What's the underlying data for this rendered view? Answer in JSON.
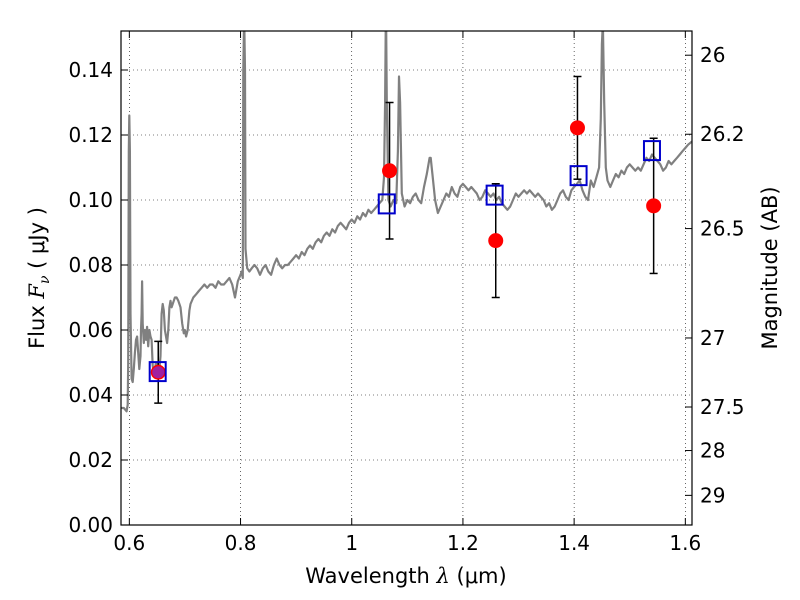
{
  "chart_data": {
    "type": "scatter",
    "xlabel": "Wavelength λ (μm)",
    "ylabel": "Flux  F_ν  ( μJy )",
    "y2label": "Magnitude (AB)",
    "xlim": [
      0.585,
      1.612
    ],
    "ylim": [
      0.0,
      0.152
    ],
    "grid": true,
    "grid_style": "dotted",
    "xticks": [
      0.6,
      0.8,
      1.0,
      1.2,
      1.4,
      1.6
    ],
    "xtick_labels": [
      "0.6",
      "0.8",
      "1",
      "1.2",
      "1.4",
      "1.6"
    ],
    "yticks": [
      0.0,
      0.02,
      0.04,
      0.06,
      0.08,
      0.1,
      0.12,
      0.14
    ],
    "ytick_labels": [
      "0.00",
      "0.02",
      "0.04",
      "0.06",
      "0.08",
      "0.10",
      "0.12",
      "0.14"
    ],
    "y2ticks": [
      26,
      26.2,
      26.5,
      27,
      27.5,
      28,
      29
    ],
    "y2tick_labels": [
      "26",
      "26.2",
      "26.5",
      "27",
      "27.5",
      "28",
      "29"
    ],
    "series": [
      {
        "type": "line",
        "color": "#808080",
        "points": [
          [
            0.585,
            0.036
          ],
          [
            0.59,
            0.036
          ],
          [
            0.595,
            0.035
          ],
          [
            0.597,
            0.037
          ],
          [
            0.598,
            0.05
          ],
          [
            0.599,
            0.115
          ],
          [
            0.6,
            0.126
          ],
          [
            0.601,
            0.115
          ],
          [
            0.602,
            0.065
          ],
          [
            0.604,
            0.045
          ],
          [
            0.606,
            0.044
          ],
          [
            0.608,
            0.048
          ],
          [
            0.61,
            0.053
          ],
          [
            0.612,
            0.057
          ],
          [
            0.614,
            0.058
          ],
          [
            0.616,
            0.053
          ],
          [
            0.618,
            0.048
          ],
          [
            0.62,
            0.052
          ],
          [
            0.621,
            0.06
          ],
          [
            0.622,
            0.065
          ],
          [
            0.623,
            0.075
          ],
          [
            0.624,
            0.062
          ],
          [
            0.626,
            0.056
          ],
          [
            0.628,
            0.06
          ],
          [
            0.63,
            0.057
          ],
          [
            0.632,
            0.061
          ],
          [
            0.634,
            0.055
          ],
          [
            0.636,
            0.06
          ],
          [
            0.638,
            0.058
          ],
          [
            0.64,
            0.057
          ],
          [
            0.642,
            0.049
          ],
          [
            0.644,
            0.047
          ],
          [
            0.646,
            0.048
          ],
          [
            0.648,
            0.05
          ],
          [
            0.65,
            0.049
          ],
          [
            0.652,
            0.05
          ],
          [
            0.654,
            0.048
          ],
          [
            0.656,
            0.052
          ],
          [
            0.658,
            0.065
          ],
          [
            0.66,
            0.068
          ],
          [
            0.662,
            0.066
          ],
          [
            0.664,
            0.06
          ],
          [
            0.666,
            0.058
          ],
          [
            0.668,
            0.056
          ],
          [
            0.67,
            0.06
          ],
          [
            0.672,
            0.067
          ],
          [
            0.674,
            0.069
          ],
          [
            0.676,
            0.067
          ],
          [
            0.678,
            0.068
          ],
          [
            0.68,
            0.069
          ],
          [
            0.682,
            0.07
          ],
          [
            0.685,
            0.07
          ],
          [
            0.688,
            0.069
          ],
          [
            0.69,
            0.068
          ],
          [
            0.692,
            0.067
          ],
          [
            0.695,
            0.062
          ],
          [
            0.698,
            0.059
          ],
          [
            0.7,
            0.06
          ],
          [
            0.702,
            0.058
          ],
          [
            0.705,
            0.06
          ],
          [
            0.708,
            0.066
          ],
          [
            0.71,
            0.068
          ],
          [
            0.715,
            0.07
          ],
          [
            0.72,
            0.071
          ],
          [
            0.725,
            0.072
          ],
          [
            0.73,
            0.073
          ],
          [
            0.735,
            0.074
          ],
          [
            0.74,
            0.073
          ],
          [
            0.745,
            0.074
          ],
          [
            0.75,
            0.074
          ],
          [
            0.755,
            0.073
          ],
          [
            0.76,
            0.075
          ],
          [
            0.765,
            0.074
          ],
          [
            0.77,
            0.074
          ],
          [
            0.775,
            0.075
          ],
          [
            0.78,
            0.076
          ],
          [
            0.785,
            0.074
          ],
          [
            0.79,
            0.07
          ],
          [
            0.795,
            0.075
          ],
          [
            0.8,
            0.077
          ],
          [
            0.802,
            0.078
          ],
          [
            0.804,
            0.076
          ],
          [
            0.805,
            0.14
          ],
          [
            0.806,
            0.152
          ],
          [
            0.807,
            0.152
          ],
          [
            0.808,
            0.14
          ],
          [
            0.809,
            0.085
          ],
          [
            0.812,
            0.079
          ],
          [
            0.816,
            0.078
          ],
          [
            0.82,
            0.079
          ],
          [
            0.825,
            0.08
          ],
          [
            0.83,
            0.079
          ],
          [
            0.835,
            0.077
          ],
          [
            0.84,
            0.079
          ],
          [
            0.845,
            0.08
          ],
          [
            0.85,
            0.078
          ],
          [
            0.855,
            0.077
          ],
          [
            0.86,
            0.08
          ],
          [
            0.865,
            0.082
          ],
          [
            0.87,
            0.08
          ],
          [
            0.875,
            0.079
          ],
          [
            0.88,
            0.08
          ],
          [
            0.885,
            0.08
          ],
          [
            0.89,
            0.081
          ],
          [
            0.895,
            0.082
          ],
          [
            0.9,
            0.083
          ],
          [
            0.905,
            0.082
          ],
          [
            0.91,
            0.084
          ],
          [
            0.915,
            0.083
          ],
          [
            0.92,
            0.085
          ],
          [
            0.925,
            0.086
          ],
          [
            0.93,
            0.085
          ],
          [
            0.935,
            0.087
          ],
          [
            0.94,
            0.088
          ],
          [
            0.945,
            0.087
          ],
          [
            0.95,
            0.089
          ],
          [
            0.955,
            0.09
          ],
          [
            0.96,
            0.089
          ],
          [
            0.965,
            0.091
          ],
          [
            0.97,
            0.09
          ],
          [
            0.975,
            0.092
          ],
          [
            0.98,
            0.093
          ],
          [
            0.985,
            0.092
          ],
          [
            0.99,
            0.091
          ],
          [
            0.995,
            0.093
          ],
          [
            1.0,
            0.094
          ],
          [
            1.005,
            0.093
          ],
          [
            1.01,
            0.095
          ],
          [
            1.015,
            0.094
          ],
          [
            1.02,
            0.096
          ],
          [
            1.025,
            0.095
          ],
          [
            1.03,
            0.097
          ],
          [
            1.035,
            0.096
          ],
          [
            1.04,
            0.097
          ],
          [
            1.045,
            0.098
          ],
          [
            1.05,
            0.099
          ],
          [
            1.055,
            0.1
          ],
          [
            1.058,
            0.107
          ],
          [
            1.06,
            0.13
          ],
          [
            1.061,
            0.152
          ],
          [
            1.062,
            0.152
          ],
          [
            1.063,
            0.13
          ],
          [
            1.066,
            0.1
          ],
          [
            1.07,
            0.098
          ],
          [
            1.075,
            0.1
          ],
          [
            1.08,
            0.099
          ],
          [
            1.083,
            0.115
          ],
          [
            1.085,
            0.138
          ],
          [
            1.087,
            0.13
          ],
          [
            1.09,
            0.102
          ],
          [
            1.095,
            0.098
          ],
          [
            1.1,
            0.1
          ],
          [
            1.105,
            0.099
          ],
          [
            1.11,
            0.101
          ],
          [
            1.115,
            0.102
          ],
          [
            1.12,
            0.1
          ],
          [
            1.125,
            0.099
          ],
          [
            1.13,
            0.104
          ],
          [
            1.135,
            0.108
          ],
          [
            1.14,
            0.113
          ],
          [
            1.142,
            0.113
          ],
          [
            1.145,
            0.108
          ],
          [
            1.15,
            0.1
          ],
          [
            1.155,
            0.096
          ],
          [
            1.16,
            0.098
          ],
          [
            1.165,
            0.1
          ],
          [
            1.17,
            0.102
          ],
          [
            1.175,
            0.101
          ],
          [
            1.18,
            0.104
          ],
          [
            1.185,
            0.102
          ],
          [
            1.19,
            0.101
          ],
          [
            1.195,
            0.104
          ],
          [
            1.2,
            0.105
          ],
          [
            1.205,
            0.104
          ],
          [
            1.21,
            0.103
          ],
          [
            1.215,
            0.104
          ],
          [
            1.22,
            0.103
          ],
          [
            1.225,
            0.102
          ],
          [
            1.23,
            0.1
          ],
          [
            1.235,
            0.101
          ],
          [
            1.24,
            0.103
          ],
          [
            1.245,
            0.102
          ],
          [
            1.25,
            0.101
          ],
          [
            1.255,
            0.102
          ],
          [
            1.26,
            0.1
          ],
          [
            1.265,
            0.101
          ],
          [
            1.27,
            0.099
          ],
          [
            1.275,
            0.098
          ],
          [
            1.28,
            0.097
          ],
          [
            1.285,
            0.098
          ],
          [
            1.29,
            0.1
          ],
          [
            1.295,
            0.102
          ],
          [
            1.3,
            0.101
          ],
          [
            1.305,
            0.102
          ],
          [
            1.31,
            0.103
          ],
          [
            1.315,
            0.102
          ],
          [
            1.32,
            0.103
          ],
          [
            1.325,
            0.102
          ],
          [
            1.33,
            0.101
          ],
          [
            1.335,
            0.102
          ],
          [
            1.34,
            0.101
          ],
          [
            1.345,
            0.1
          ],
          [
            1.35,
            0.098
          ],
          [
            1.355,
            0.099
          ],
          [
            1.36,
            0.097
          ],
          [
            1.365,
            0.098
          ],
          [
            1.37,
            0.1
          ],
          [
            1.375,
            0.102
          ],
          [
            1.38,
            0.103
          ],
          [
            1.385,
            0.101
          ],
          [
            1.39,
            0.1
          ],
          [
            1.395,
            0.103
          ],
          [
            1.4,
            0.104
          ],
          [
            1.405,
            0.105
          ],
          [
            1.41,
            0.106
          ],
          [
            1.415,
            0.103
          ],
          [
            1.42,
            0.101
          ],
          [
            1.425,
            0.1
          ],
          [
            1.43,
            0.106
          ],
          [
            1.435,
            0.104
          ],
          [
            1.44,
            0.107
          ],
          [
            1.445,
            0.11
          ],
          [
            1.448,
            0.125
          ],
          [
            1.45,
            0.148
          ],
          [
            1.451,
            0.152
          ],
          [
            1.452,
            0.152
          ],
          [
            1.454,
            0.13
          ],
          [
            1.457,
            0.11
          ],
          [
            1.46,
            0.106
          ],
          [
            1.465,
            0.104
          ],
          [
            1.47,
            0.106
          ],
          [
            1.475,
            0.108
          ],
          [
            1.48,
            0.107
          ],
          [
            1.485,
            0.109
          ],
          [
            1.49,
            0.108
          ],
          [
            1.495,
            0.11
          ],
          [
            1.5,
            0.111
          ],
          [
            1.505,
            0.11
          ],
          [
            1.51,
            0.109
          ],
          [
            1.515,
            0.11
          ],
          [
            1.52,
            0.109
          ],
          [
            1.525,
            0.111
          ],
          [
            1.53,
            0.113
          ],
          [
            1.535,
            0.112
          ],
          [
            1.54,
            0.114
          ],
          [
            1.545,
            0.113
          ],
          [
            1.55,
            0.112
          ],
          [
            1.555,
            0.111
          ],
          [
            1.56,
            0.109
          ],
          [
            1.565,
            0.11
          ],
          [
            1.57,
            0.112
          ],
          [
            1.575,
            0.111
          ],
          [
            1.58,
            0.112
          ],
          [
            1.585,
            0.113
          ],
          [
            1.59,
            0.114
          ],
          [
            1.595,
            0.115
          ],
          [
            1.6,
            0.116
          ],
          [
            1.605,
            0.117
          ],
          [
            1.612,
            0.118
          ]
        ]
      },
      {
        "type": "scatter",
        "marker": "circle",
        "color": "#ff0000",
        "points": [
          {
            "x": 0.652,
            "y": 0.047,
            "err": 0.0095
          },
          {
            "x": 1.068,
            "y": 0.109,
            "err": 0.021
          },
          {
            "x": 1.259,
            "y": 0.0875,
            "err": 0.0175
          },
          {
            "x": 1.406,
            "y": 0.1222,
            "err": 0.0158
          },
          {
            "x": 1.543,
            "y": 0.0982,
            "err": 0.0208
          }
        ]
      },
      {
        "type": "scatter",
        "marker": "square",
        "color": "#0000cc",
        "points": [
          {
            "x": 0.651,
            "y": 0.0472
          },
          {
            "x": 1.063,
            "y": 0.0988
          },
          {
            "x": 1.257,
            "y": 0.1015
          },
          {
            "x": 1.408,
            "y": 0.1075
          },
          {
            "x": 1.54,
            "y": 0.1152
          }
        ]
      }
    ],
    "colors": {
      "spectrum": "#808080",
      "observed": "#ff0000",
      "model": "#0000cc",
      "overlap": "#a020a0",
      "errorbar": "#000000"
    }
  }
}
